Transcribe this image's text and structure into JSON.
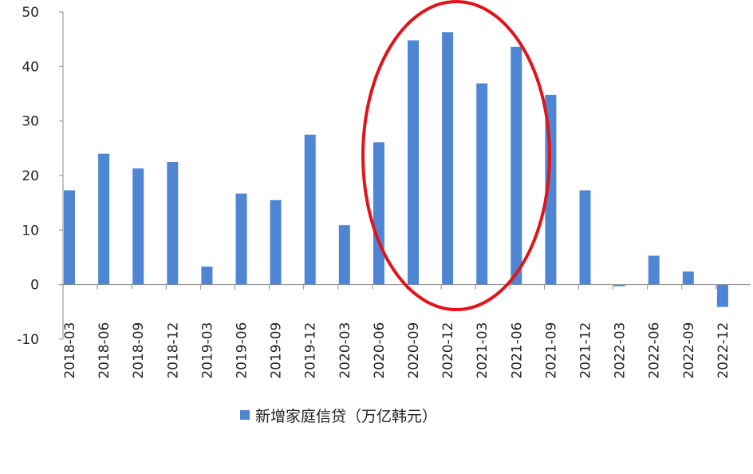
{
  "chart_data": {
    "type": "bar",
    "title": "",
    "xlabel": "",
    "ylabel": "",
    "ylim": [
      -10,
      50
    ],
    "yticks": [
      50,
      40,
      30,
      20,
      10,
      0,
      -10
    ],
    "grid": false,
    "legend_position": "bottom",
    "categories": [
      "2018-03",
      "2018-06",
      "2018-09",
      "2018-12",
      "2019-03",
      "2019-06",
      "2019-09",
      "2019-12",
      "2020-03",
      "2020-06",
      "2020-09",
      "2020-12",
      "2021-03",
      "2021-06",
      "2021-09",
      "2021-12",
      "2022-03",
      "2022-06",
      "2022-09",
      "2022-12"
    ],
    "series": [
      {
        "name": "新增家庭信贷（万亿韩元）",
        "color": "#4f86d4",
        "values": [
          17.3,
          24.0,
          21.3,
          22.5,
          3.3,
          16.7,
          15.5,
          27.5,
          10.9,
          26.1,
          44.8,
          46.3,
          36.9,
          43.6,
          34.8,
          17.3,
          -0.3,
          5.3,
          2.4,
          -4.1
        ]
      }
    ],
    "annotation": {
      "shape": "ellipse",
      "color": "#e0141b",
      "highlights": [
        "2020-09",
        "2020-12",
        "2021-03",
        "2021-06"
      ]
    }
  }
}
